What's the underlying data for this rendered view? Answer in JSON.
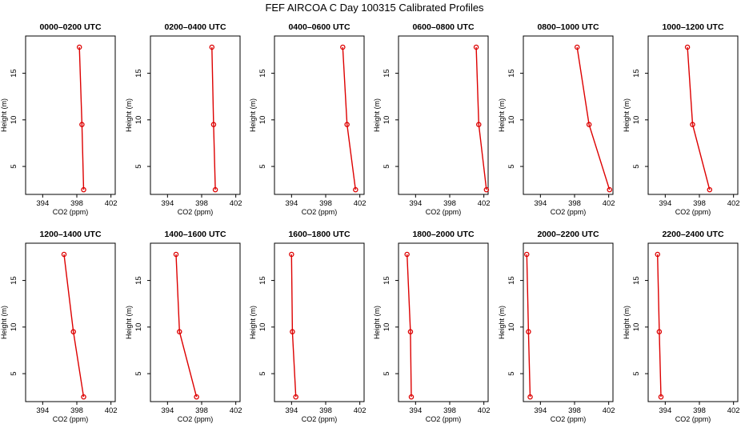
{
  "figure": {
    "title": "FEF AIRCOA C  Day 100315  Calibrated Profiles"
  },
  "chart_data": [
    {
      "type": "line",
      "title": "0000–0200 UTC",
      "xlabel": "CO2 (ppm)",
      "ylabel": "Height (m)",
      "xlim": [
        392,
        402.5
      ],
      "ylim": [
        2,
        19
      ],
      "xticks": [
        394,
        398,
        402
      ],
      "yticks": [
        5,
        10,
        15
      ],
      "grid": false,
      "x": [
        398.8,
        398.6,
        398.3
      ],
      "y": [
        2.5,
        9.5,
        17.8
      ]
    },
    {
      "type": "line",
      "title": "0200–0400 UTC",
      "xlabel": "CO2 (ppm)",
      "ylabel": "Height (m)",
      "xlim": [
        392,
        402.5
      ],
      "ylim": [
        2,
        19
      ],
      "xticks": [
        394,
        398,
        402
      ],
      "yticks": [
        5,
        10,
        15
      ],
      "grid": false,
      "x": [
        399.6,
        399.4,
        399.2
      ],
      "y": [
        2.5,
        9.5,
        17.8
      ]
    },
    {
      "type": "line",
      "title": "0400–0600 UTC",
      "xlabel": "CO2 (ppm)",
      "ylabel": "Height (m)",
      "xlim": [
        392,
        402.5
      ],
      "ylim": [
        2,
        19
      ],
      "xticks": [
        394,
        398,
        402
      ],
      "yticks": [
        5,
        10,
        15
      ],
      "grid": false,
      "x": [
        401.5,
        400.5,
        400.0
      ],
      "y": [
        2.5,
        9.5,
        17.8
      ]
    },
    {
      "type": "line",
      "title": "0600–0800 UTC",
      "xlabel": "CO2 (ppm)",
      "ylabel": "Height (m)",
      "xlim": [
        392,
        402.5
      ],
      "ylim": [
        2,
        19
      ],
      "xticks": [
        394,
        398,
        402
      ],
      "yticks": [
        5,
        10,
        15
      ],
      "grid": false,
      "x": [
        402.3,
        401.4,
        401.1
      ],
      "y": [
        2.5,
        9.5,
        17.8
      ]
    },
    {
      "type": "line",
      "title": "0800–1000 UTC",
      "xlabel": "CO2 (ppm)",
      "ylabel": "Height (m)",
      "xlim": [
        392,
        402.5
      ],
      "ylim": [
        2,
        19
      ],
      "xticks": [
        394,
        398,
        402
      ],
      "yticks": [
        5,
        10,
        15
      ],
      "grid": false,
      "x": [
        402.1,
        399.7,
        398.3
      ],
      "y": [
        2.5,
        9.5,
        17.8
      ]
    },
    {
      "type": "line",
      "title": "1000–1200 UTC",
      "xlabel": "CO2 (ppm)",
      "ylabel": "Height (m)",
      "xlim": [
        392,
        402.5
      ],
      "ylim": [
        2,
        19
      ],
      "xticks": [
        394,
        398,
        402
      ],
      "yticks": [
        5,
        10,
        15
      ],
      "grid": false,
      "x": [
        399.2,
        397.2,
        396.6
      ],
      "y": [
        2.5,
        9.5,
        17.8
      ]
    },
    {
      "type": "line",
      "title": "1200–1400 UTC",
      "xlabel": "CO2 (ppm)",
      "ylabel": "Height (m)",
      "xlim": [
        392,
        402.5
      ],
      "ylim": [
        2,
        19
      ],
      "xticks": [
        394,
        398,
        402
      ],
      "yticks": [
        5,
        10,
        15
      ],
      "grid": false,
      "x": [
        398.8,
        397.6,
        396.5
      ],
      "y": [
        2.5,
        9.5,
        17.8
      ]
    },
    {
      "type": "line",
      "title": "1400–1600 UTC",
      "xlabel": "CO2 (ppm)",
      "ylabel": "Height (m)",
      "xlim": [
        392,
        402.5
      ],
      "ylim": [
        2,
        19
      ],
      "xticks": [
        394,
        398,
        402
      ],
      "yticks": [
        5,
        10,
        15
      ],
      "grid": false,
      "x": [
        397.4,
        395.4,
        395.0
      ],
      "y": [
        2.5,
        9.5,
        17.8
      ]
    },
    {
      "type": "line",
      "title": "1600–1800 UTC",
      "xlabel": "CO2 (ppm)",
      "ylabel": "Height (m)",
      "xlim": [
        392,
        402.5
      ],
      "ylim": [
        2,
        19
      ],
      "xticks": [
        394,
        398,
        402
      ],
      "yticks": [
        5,
        10,
        15
      ],
      "grid": false,
      "x": [
        394.5,
        394.1,
        394.0
      ],
      "y": [
        2.5,
        9.5,
        17.8
      ]
    },
    {
      "type": "line",
      "title": "1800–2000 UTC",
      "xlabel": "CO2 (ppm)",
      "ylabel": "Height (m)",
      "xlim": [
        392,
        402.5
      ],
      "ylim": [
        2,
        19
      ],
      "xticks": [
        394,
        398,
        402
      ],
      "yticks": [
        5,
        10,
        15
      ],
      "grid": false,
      "x": [
        393.5,
        393.4,
        393.0
      ],
      "y": [
        2.5,
        9.5,
        17.8
      ]
    },
    {
      "type": "line",
      "title": "2000–2200 UTC",
      "xlabel": "CO2 (ppm)",
      "ylabel": "Height (m)",
      "xlim": [
        392,
        402.5
      ],
      "ylim": [
        2,
        19
      ],
      "xticks": [
        394,
        398,
        402
      ],
      "yticks": [
        5,
        10,
        15
      ],
      "grid": false,
      "x": [
        392.8,
        392.6,
        392.4
      ],
      "y": [
        2.5,
        9.5,
        17.8
      ]
    },
    {
      "type": "line",
      "title": "2200–2400 UTC",
      "xlabel": "CO2 (ppm)",
      "ylabel": "Height (m)",
      "xlim": [
        392,
        402.5
      ],
      "ylim": [
        2,
        19
      ],
      "xticks": [
        394,
        398,
        402
      ],
      "yticks": [
        5,
        10,
        15
      ],
      "grid": false,
      "x": [
        393.5,
        393.3,
        393.1
      ],
      "y": [
        2.5,
        9.5,
        17.8
      ]
    }
  ],
  "colors": {
    "series": "#dd0000",
    "axes": "#000000",
    "background": "#ffffff"
  }
}
